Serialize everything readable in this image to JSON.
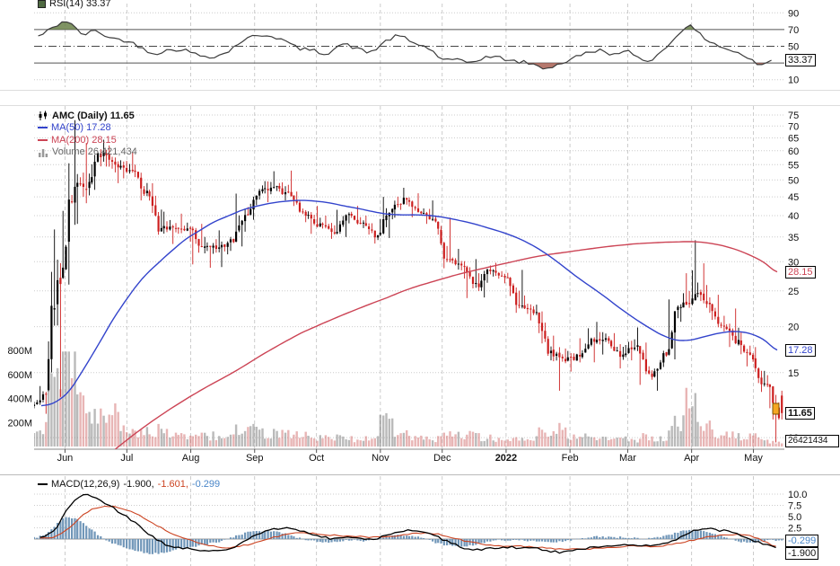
{
  "panels": {
    "rsi": {
      "legend": "RSI(14) 33.37",
      "last_label": "33.37"
    },
    "price": {
      "symbol_legend": "AMC (Daily) 11.65",
      "ma50_legend": "MA(50) 17.28",
      "ma200_legend": "MA(200) 28.15",
      "volume_legend": "Volume 26,421,434",
      "ma200_box": "28.15",
      "ma50_box": "17.28",
      "price_box": "11.65",
      "volume_box": "26421434"
    },
    "macd": {
      "name": "MACD(12,26,9)",
      "v_macd": "-1.900,",
      "v_signal": "-1.601,",
      "v_hist": "-0.299",
      "hist_box": "-0.299",
      "macd_box": "-1.900"
    }
  },
  "colors": {
    "candle_up": "#000000",
    "candle_down": "#cc1f1f",
    "ma50": "#3344cc",
    "ma200": "#cc4455",
    "volume_up": "rgba(130,130,130,0.55)",
    "volume_down": "rgba(205,90,90,0.45)",
    "rsi_line": "#3c3c3c",
    "rsi_overbought_fill": "rgba(104,128,72,0.85)",
    "rsi_oversold_fill": "rgba(168,96,84,0.85)",
    "macd_line": "#000000",
    "signal_line": "#cc4422",
    "hist": "#7096b8",
    "grid_dot": "#cccccc",
    "grid_dash": "#cccccc",
    "band_line": "#555555",
    "axis_line": "#888888",
    "flag": "#f5a723"
  },
  "chart_data": [
    {
      "panel": "rsi",
      "type": "line",
      "title": "RSI(14)",
      "ylim": [
        0,
        100
      ],
      "yticks": [
        90,
        70,
        50,
        30,
        10
      ],
      "overbought": 70,
      "oversold": 30,
      "midline": 50,
      "last": 33.37,
      "weekly_values": [
        62,
        72,
        80,
        65,
        68,
        60,
        57,
        50,
        42,
        45,
        46,
        40,
        38,
        42,
        55,
        62,
        63,
        57,
        48,
        45,
        42,
        52,
        48,
        43,
        55,
        62,
        54,
        48,
        35,
        33,
        31,
        37,
        36,
        32,
        30,
        24,
        28,
        35,
        42,
        45,
        40,
        43,
        33,
        40,
        58,
        74,
        62,
        52,
        45,
        38,
        28,
        33.37
      ]
    },
    {
      "panel": "price",
      "type": "candlestick",
      "symbol": "AMC",
      "timeframe": "Daily",
      "scale": "log",
      "yticks": [
        75,
        70,
        65,
        60,
        55,
        50,
        45,
        40,
        35,
        30,
        25,
        20,
        15,
        10
      ],
      "x_labels": [
        "Jun",
        "Jul",
        "Aug",
        "Sep",
        "Oct",
        "Nov",
        "Dec",
        "2022",
        "Feb",
        "Mar",
        "Apr",
        "May"
      ],
      "last_close": 11.65,
      "ma50_last": 17.28,
      "ma200_last": 28.15,
      "last_volume": 26421434,
      "volume_yticks": [
        800,
        600,
        400,
        200
      ],
      "weekly_ohlc": [
        [
          12.2,
          13.8,
          11.6,
          13.1
        ],
        [
          13.2,
          36.7,
          12.9,
          26.1
        ],
        [
          30,
          72.6,
          26,
          47.9
        ],
        [
          47,
          63,
          38,
          49.4
        ],
        [
          50,
          64.3,
          47,
          59.3
        ],
        [
          59,
          62,
          49,
          54.1
        ],
        [
          54,
          59.5,
          50.5,
          52.9
        ],
        [
          53,
          55,
          44,
          46.7
        ],
        [
          47,
          49,
          35.5,
          37
        ],
        [
          35,
          41,
          33.5,
          37
        ],
        [
          37,
          40.5,
          34,
          37
        ],
        [
          37,
          38,
          29.5,
          33
        ],
        [
          33,
          36.5,
          28.9,
          32.8
        ],
        [
          33,
          35,
          29,
          33.9
        ],
        [
          34,
          45.9,
          33,
          40.1
        ],
        [
          40.5,
          48.3,
          39,
          47.2
        ],
        [
          47,
          52.8,
          43.5,
          48.1
        ],
        [
          48,
          53,
          44,
          45.2
        ],
        [
          44,
          46.5,
          38.4,
          40
        ],
        [
          40,
          42.5,
          35.7,
          38.1
        ],
        [
          38,
          40,
          34.6,
          35.8
        ],
        [
          36,
          41.5,
          35,
          40.4
        ],
        [
          40.5,
          42.5,
          37,
          38.3
        ],
        [
          38,
          40,
          33.6,
          35.4
        ],
        [
          35.5,
          45,
          34.8,
          41.7
        ],
        [
          42,
          47.6,
          39.5,
          44.2
        ],
        [
          44,
          46,
          39.6,
          40.6
        ],
        [
          40.5,
          44,
          38,
          38.6
        ],
        [
          38.5,
          39.5,
          28.8,
          30.4
        ],
        [
          30.5,
          32.5,
          27,
          29.1
        ],
        [
          29,
          30.5,
          23.9,
          25.6
        ],
        [
          25,
          29.3,
          24,
          28.4
        ],
        [
          28.5,
          29.8,
          26.2,
          27.2
        ],
        [
          27.5,
          28.5,
          21.8,
          22.8
        ],
        [
          22.5,
          24.3,
          20.8,
          21.9
        ],
        [
          21.5,
          22,
          16.2,
          17.2
        ],
        [
          16.5,
          18.9,
          13.4,
          16.1
        ],
        [
          16.2,
          18.6,
          15.1,
          16.6
        ],
        [
          16.6,
          19.8,
          16,
          18.2
        ],
        [
          18,
          20.6,
          16.8,
          18.3
        ],
        [
          18,
          19.2,
          15.4,
          16.8
        ],
        [
          17,
          19.9,
          16.2,
          17.8
        ],
        [
          17.5,
          18.1,
          13.9,
          14.6
        ],
        [
          14.3,
          17.2,
          13.4,
          16.7
        ],
        [
          16.8,
          23.7,
          16.3,
          22.6
        ],
        [
          25,
          34.3,
          22.5,
          24.5
        ],
        [
          24.5,
          29.7,
          21.8,
          23
        ],
        [
          23,
          24.4,
          19.4,
          20.1
        ],
        [
          20,
          22.4,
          17.6,
          18.4
        ],
        [
          18.2,
          19.4,
          15.6,
          16.3
        ],
        [
          16.5,
          17.6,
          13.3,
          13.9
        ],
        [
          13.5,
          14.2,
          9.7,
          11.65
        ]
      ],
      "weekly_volume_avg_millions": [
        150,
        500,
        700,
        450,
        300,
        250,
        150,
        120,
        130,
        110,
        90,
        100,
        90,
        70,
        140,
        130,
        120,
        100,
        90,
        80,
        70,
        70,
        60,
        70,
        200,
        130,
        80,
        60,
        110,
        90,
        100,
        70,
        50,
        70,
        60,
        110,
        150,
        90,
        80,
        70,
        70,
        60,
        80,
        70,
        180,
        350,
        180,
        100,
        90,
        80,
        90,
        35
      ],
      "ma50_weekly": [
        12.2,
        12.5,
        13.5,
        15.5,
        18,
        21,
        24,
        27,
        29.5,
        32,
        34.5,
        36.5,
        38.5,
        40,
        41.5,
        42.5,
        43.3,
        43.8,
        44,
        43.8,
        43.3,
        42.5,
        41.8,
        41,
        40.4,
        40.2,
        40.2,
        40,
        39.5,
        38.8,
        38,
        37,
        36,
        34.8,
        33.3,
        31.5,
        29.5,
        27.5,
        25.8,
        24.2,
        22.6,
        21.2,
        20,
        19,
        18.4,
        18.4,
        18.8,
        19.2,
        19.4,
        19.2,
        18.5,
        17.28
      ],
      "ma200_weekly": [
        5.8,
        6,
        6.8,
        7.6,
        8.4,
        9.2,
        9.9,
        10.6,
        11.3,
        12,
        12.7,
        13.4,
        14.1,
        14.8,
        15.6,
        16.5,
        17.4,
        18.3,
        19.2,
        20,
        20.8,
        21.6,
        22.4,
        23.2,
        24,
        24.9,
        25.7,
        26.4,
        27.1,
        27.8,
        28.4,
        29,
        29.6,
        30.2,
        30.8,
        31.3,
        31.7,
        32.1,
        32.5,
        32.9,
        33.2,
        33.5,
        33.7,
        33.85,
        33.95,
        34,
        33.8,
        33.3,
        32.5,
        31.4,
        30,
        28.15
      ]
    },
    {
      "panel": "macd",
      "type": "macd",
      "params": "12,26,9",
      "yticks": [
        10,
        7.5,
        5,
        2.5
      ],
      "ylabels": [
        "10.0",
        "7.5",
        "5.0",
        "2.5"
      ],
      "last_macd": -1.9,
      "last_signal": -1.601,
      "last_hist": -0.299,
      "weekly_macd": [
        0.5,
        2,
        7,
        9.8,
        9,
        7,
        5,
        2.5,
        0,
        -1.5,
        -2,
        -2.5,
        -2.7,
        -2.3,
        -0.8,
        0.8,
        2,
        2.5,
        1.8,
        1,
        0.2,
        0.2,
        0.4,
        0,
        0.8,
        1.8,
        2,
        1.4,
        -0.2,
        -1.5,
        -2.4,
        -2.2,
        -1.8,
        -1.9,
        -2,
        -2.5,
        -2.9,
        -2.6,
        -2,
        -1.5,
        -1.4,
        -1.2,
        -1.5,
        -1.3,
        -0.2,
        1.5,
        2.2,
        2,
        1.4,
        0.2,
        -1,
        -1.9
      ],
      "weekly_signal": [
        0.2,
        0.5,
        2.5,
        5.5,
        7,
        7.3,
        6.5,
        5,
        3.2,
        1.5,
        0.2,
        -0.8,
        -1.6,
        -1.9,
        -1.5,
        -0.8,
        0.2,
        1,
        1.3,
        1.2,
        0.9,
        0.7,
        0.6,
        0.4,
        0.5,
        0.9,
        1.3,
        1.3,
        0.8,
        0,
        -0.8,
        -1.3,
        -1.5,
        -1.6,
        -1.7,
        -1.9,
        -2.2,
        -2.3,
        -2.2,
        -2,
        -1.8,
        -1.6,
        -1.6,
        -1.5,
        -1.1,
        -0.4,
        0.3,
        0.8,
        1,
        0.8,
        -0.2,
        -1.601
      ]
    }
  ]
}
